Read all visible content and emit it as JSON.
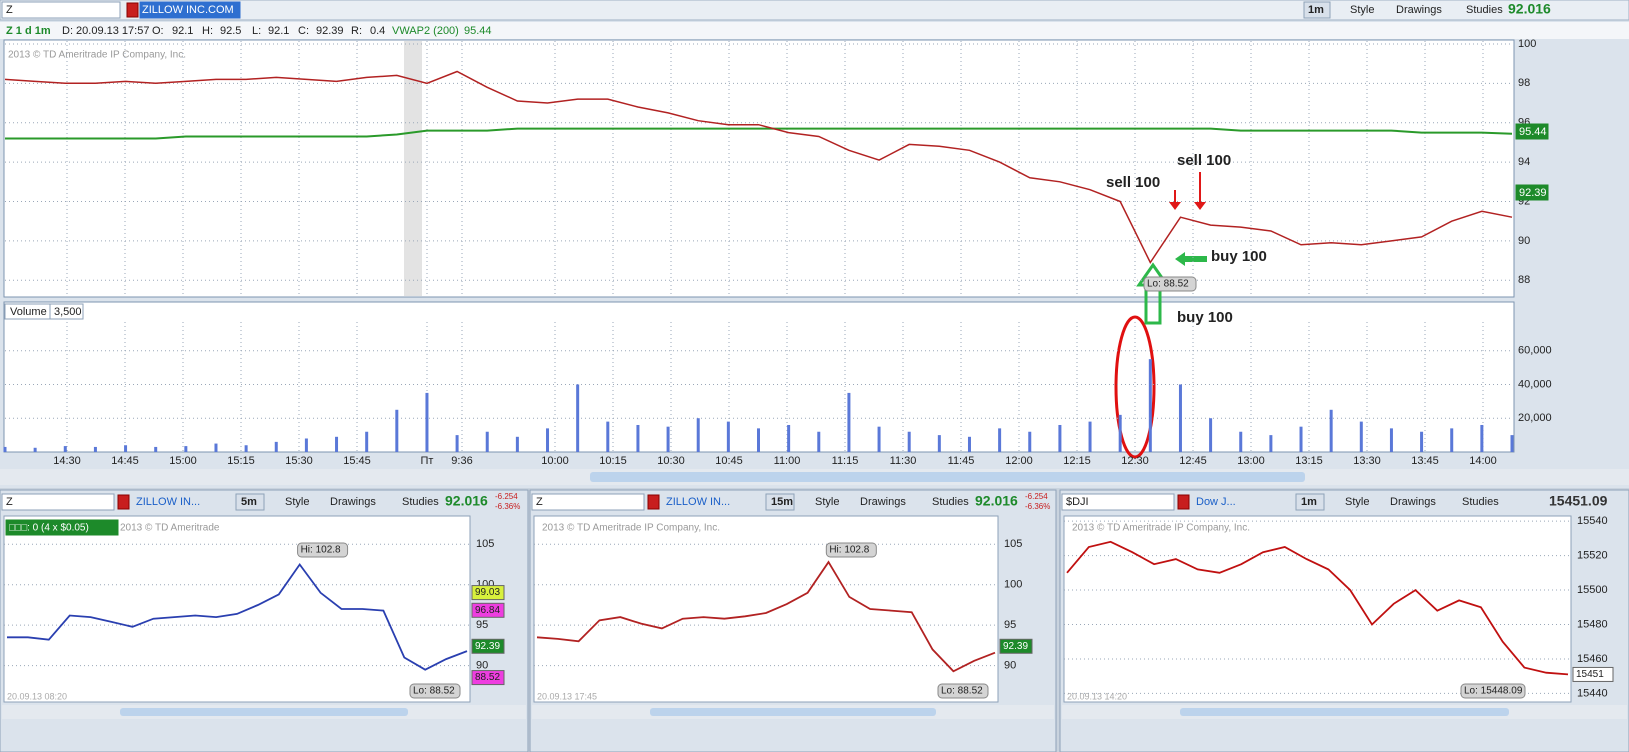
{
  "main_window": {
    "toolbar": {
      "symbol": "Z",
      "company": "ZILLOW INC.COM",
      "interval": "1m",
      "style": "Style",
      "drawings": "Drawings",
      "studies": "Studies",
      "last": "92.016"
    },
    "info_bar": [
      "Z 1 d 1m",
      "D: 20.09.13 17:57",
      "O:",
      "92.1",
      "H:",
      "92.5",
      "L:",
      "92.1",
      "C:",
      "92.39",
      "R:",
      "0.4",
      "VWAP2 (200)",
      "95.44"
    ],
    "copyright": "2013 © TD Ameritrade IP Company, Inc.",
    "price_chart": {
      "ylim": [
        87.2,
        100.2
      ],
      "yticks": [
        88,
        90,
        92,
        94,
        96,
        98,
        100
      ],
      "price": {
        "color": "#b22222",
        "values": [
          98.2,
          98.1,
          98.0,
          98.0,
          98.1,
          98.0,
          98.1,
          98.2,
          98.2,
          98.3,
          98.2,
          98.1,
          98.3,
          98.4,
          98.0,
          98.6,
          97.8,
          97.1,
          97.0,
          97.2,
          97.2,
          96.8,
          96.5,
          96.1,
          95.9,
          95.9,
          95.5,
          95.3,
          94.6,
          94.1,
          94.9,
          94.8,
          94.6,
          94.0,
          93.2,
          93.0,
          92.6,
          92.0,
          88.9,
          91.2,
          90.8,
          90.7,
          90.5,
          89.8,
          89.9,
          89.8,
          90.0,
          90.2,
          91.0,
          91.5,
          91.2
        ]
      },
      "vwap": {
        "color": "#2a9a2a",
        "values": [
          95.2,
          95.2,
          95.2,
          95.2,
          95.2,
          95.2,
          95.3,
          95.3,
          95.3,
          95.3,
          95.3,
          95.3,
          95.3,
          95.4,
          95.6,
          95.6,
          95.6,
          95.7,
          95.7,
          95.7,
          95.7,
          95.7,
          95.7,
          95.7,
          95.7,
          95.7,
          95.7,
          95.7,
          95.7,
          95.7,
          95.7,
          95.7,
          95.7,
          95.7,
          95.7,
          95.7,
          95.7,
          95.7,
          95.7,
          95.7,
          95.7,
          95.6,
          95.6,
          95.6,
          95.6,
          95.6,
          95.6,
          95.5,
          95.5,
          95.5,
          95.44
        ]
      },
      "last_label": "92.39",
      "vwap_label": "95.44",
      "low_label": "Lo: 88.52",
      "annotations": [
        "sell 100",
        "sell 100",
        "buy 100",
        "buy 100"
      ]
    },
    "volume": {
      "title": "Volume",
      "scale": "3,500",
      "ylim": [
        0,
        77000
      ],
      "yticks": [
        {
          "value": 20000,
          "label": "20,000"
        },
        {
          "value": 40000,
          "label": "40,000"
        },
        {
          "value": 60000,
          "label": "60,000"
        }
      ],
      "color": "#5a78d8",
      "values": [
        3000,
        2500,
        3500,
        3000,
        4000,
        3000,
        3500,
        5000,
        4000,
        6000,
        8000,
        9000,
        12000,
        25000,
        35000,
        10000,
        12000,
        9000,
        14000,
        40000,
        18000,
        16000,
        15000,
        20000,
        18000,
        14000,
        16000,
        12000,
        35000,
        15000,
        12000,
        10000,
        9000,
        14000,
        12000,
        16000,
        18000,
        22000,
        55000,
        40000,
        20000,
        12000,
        10000,
        15000,
        25000,
        18000,
        14000,
        12000,
        14000,
        16000,
        10000
      ]
    },
    "time_labels": [
      "14:30",
      "14:45",
      "15:00",
      "15:15",
      "15:30",
      "15:45",
      "Пт",
      "9:36",
      "10:00",
      "10:15",
      "10:30",
      "10:45",
      "11:00",
      "11:15",
      "11:30",
      "11:45",
      "12:00",
      "12:15",
      "12:30",
      "12:45",
      "13:00",
      "13:15",
      "13:30",
      "13:45",
      "14:00"
    ]
  },
  "panels": [
    {
      "symbol": "Z",
      "company": "ZILLOW IN...",
      "interval": "5m",
      "style": "Style",
      "drawings": "Drawings",
      "studies": "Studies",
      "last": "92.016",
      "change": "-6.254",
      "change_pct": "-6.36%",
      "badge": "□□□: 0 (4 x $0.05)",
      "copyright": "2013 © TD Ameritrade",
      "hi_label": "Hi: 102.8",
      "lo_label": "Lo: 88.52",
      "price_badges": [
        "99.03",
        "96.84",
        "92.39",
        "88.52"
      ],
      "date_label": "20.09.13 08:20",
      "ylim": [
        85.5,
        108.5
      ],
      "yticks": [
        90,
        95,
        100,
        105
      ],
      "color": "#2a3fb0",
      "values": [
        93.5,
        93.5,
        93.2,
        96.2,
        96.0,
        95.4,
        94.8,
        95.8,
        96.0,
        96.2,
        96.0,
        96.4,
        97.5,
        98.8,
        102.5,
        99.0,
        97.0,
        97.0,
        96.8,
        91.0,
        89.5,
        90.8,
        91.8
      ]
    },
    {
      "symbol": "Z",
      "company": "ZILLOW IN...",
      "interval": "15m",
      "style": "Style",
      "drawings": "Drawings",
      "studies": "Studies",
      "last": "92.016",
      "change": "-6.254",
      "change_pct": "-6.36%",
      "copyright": "2013 © TD Ameritrade IP Company, Inc.",
      "hi_label": "Hi: 102.8",
      "lo_label": "Lo: 88.52",
      "price_badges": [
        "92.39"
      ],
      "date_label": "20.09.13 17:45",
      "ylim": [
        85.5,
        108.5
      ],
      "yticks": [
        90,
        95,
        100,
        105
      ],
      "color": "#b22222",
      "values": [
        93.5,
        93.3,
        93.0,
        95.6,
        96.0,
        95.2,
        94.6,
        95.8,
        96.0,
        95.8,
        96.1,
        96.5,
        97.6,
        99.0,
        102.8,
        98.5,
        97.0,
        96.8,
        96.6,
        92.0,
        89.3,
        90.6,
        91.6
      ]
    },
    {
      "symbol": "$DJI",
      "company": "Dow J...",
      "interval": "1m",
      "style": "Style",
      "drawings": "Drawings",
      "studies": "Studies",
      "last": "15451.09",
      "copyright": "2013 © TD Ameritrade IP Company, Inc.",
      "lo_label": "Lo: 15448.09",
      "price_badges": [
        "15451"
      ],
      "date_label": "20.09.13 14:20",
      "ylim": [
        15435,
        15543
      ],
      "yticks": [
        15440,
        15460,
        15480,
        15500,
        15520,
        15540
      ],
      "color": "#c01010",
      "values": [
        15510,
        15525,
        15528,
        15522,
        15515,
        15518,
        15512,
        15510,
        15515,
        15522,
        15525,
        15518,
        15512,
        15500,
        15480,
        15492,
        15500,
        15488,
        15494,
        15490,
        15470,
        15455,
        15452,
        15451
      ]
    }
  ]
}
